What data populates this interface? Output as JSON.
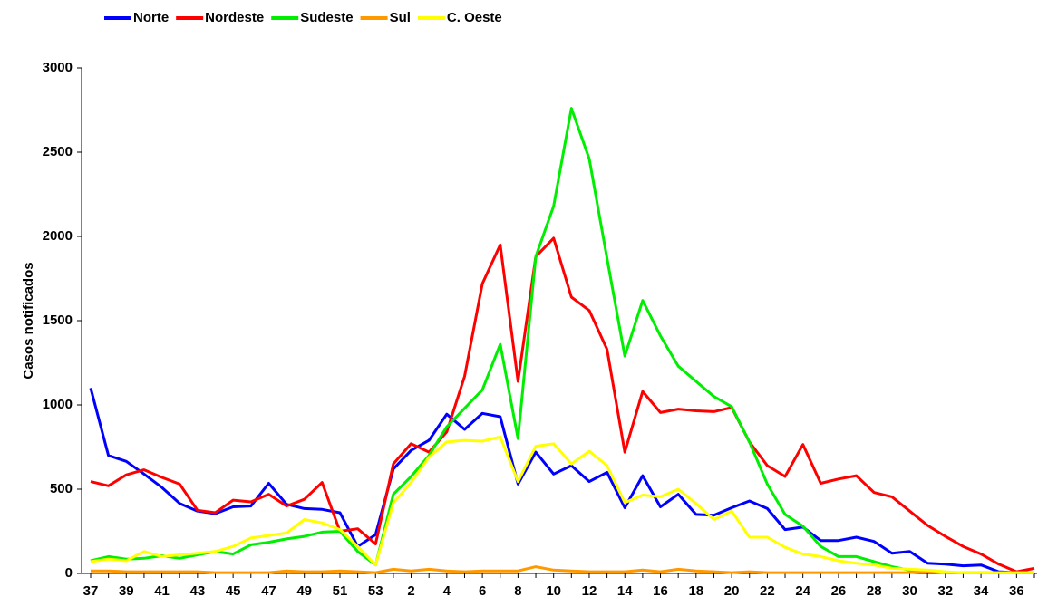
{
  "chart_data": {
    "type": "line",
    "y_label": "Casos notificados",
    "categories": [
      37,
      null,
      39,
      null,
      41,
      null,
      43,
      null,
      45,
      null,
      47,
      null,
      49,
      null,
      51,
      null,
      53,
      null,
      2,
      null,
      4,
      null,
      6,
      null,
      8,
      null,
      10,
      null,
      12,
      null,
      14,
      null,
      16,
      null,
      18,
      null,
      20,
      null,
      22,
      null,
      24,
      null,
      26,
      null,
      28,
      null,
      30,
      null,
      32,
      null,
      34,
      null,
      36,
      null
    ],
    "series": [
      {
        "name": "Norte",
        "color": "#0000ff",
        "values": [
          1100,
          700,
          665,
          590,
          510,
          415,
          370,
          355,
          395,
          400,
          535,
          410,
          385,
          380,
          360,
          160,
          230,
          620,
          730,
          790,
          945,
          855,
          950,
          930,
          530,
          720,
          590,
          640,
          545,
          600,
          390,
          580,
          395,
          470,
          350,
          345,
          390,
          430,
          385,
          260,
          275,
          195,
          195,
          215,
          190,
          120,
          130,
          60,
          55,
          45,
          50,
          10,
          5,
          5
        ]
      },
      {
        "name": "Nordeste",
        "color": "#ff0000",
        "values": [
          545,
          520,
          585,
          615,
          570,
          530,
          375,
          360,
          435,
          425,
          470,
          400,
          440,
          540,
          250,
          265,
          175,
          650,
          770,
          720,
          840,
          1170,
          1720,
          1950,
          1140,
          1880,
          1990,
          1640,
          1560,
          1330,
          720,
          1080,
          955,
          975,
          965,
          960,
          985,
          780,
          640,
          575,
          765,
          535,
          560,
          580,
          480,
          455,
          370,
          285,
          220,
          160,
          115,
          55,
          10,
          30
        ]
      },
      {
        "name": "Sudeste",
        "color": "#00ee00",
        "values": [
          75,
          100,
          85,
          90,
          105,
          90,
          110,
          130,
          115,
          170,
          185,
          205,
          220,
          245,
          250,
          130,
          50,
          470,
          575,
          700,
          870,
          980,
          1090,
          1360,
          800,
          1880,
          2180,
          2760,
          2460,
          1870,
          1290,
          1620,
          1410,
          1230,
          1140,
          1050,
          990,
          780,
          530,
          350,
          280,
          160,
          100,
          100,
          70,
          40,
          20,
          15,
          5,
          5,
          5,
          5,
          5,
          5
        ]
      },
      {
        "name": "Sul",
        "color": "#ff9900",
        "values": [
          15,
          15,
          10,
          10,
          10,
          10,
          10,
          5,
          5,
          5,
          5,
          15,
          10,
          10,
          15,
          10,
          5,
          25,
          15,
          25,
          15,
          10,
          15,
          15,
          15,
          40,
          20,
          15,
          10,
          10,
          10,
          20,
          10,
          25,
          15,
          10,
          5,
          10,
          5,
          5,
          5,
          5,
          5,
          5,
          5,
          5,
          5,
          10,
          5,
          5,
          5,
          5,
          5,
          5
        ]
      },
      {
        "name": "C. Oeste",
        "color": "#ffff00",
        "values": [
          70,
          85,
          75,
          130,
          100,
          110,
          120,
          130,
          160,
          210,
          225,
          240,
          320,
          300,
          260,
          160,
          50,
          420,
          540,
          690,
          780,
          790,
          785,
          810,
          545,
          755,
          770,
          650,
          725,
          640,
          420,
          465,
          455,
          500,
          415,
          320,
          370,
          215,
          215,
          155,
          115,
          100,
          75,
          60,
          50,
          30,
          25,
          20,
          10,
          5,
          5,
          5,
          5,
          5
        ]
      }
    ],
    "ylim": [
      0,
      3000
    ],
    "yticks": [
      0,
      500,
      1000,
      1500,
      2000,
      2500,
      3000
    ],
    "legend": "top-left"
  }
}
